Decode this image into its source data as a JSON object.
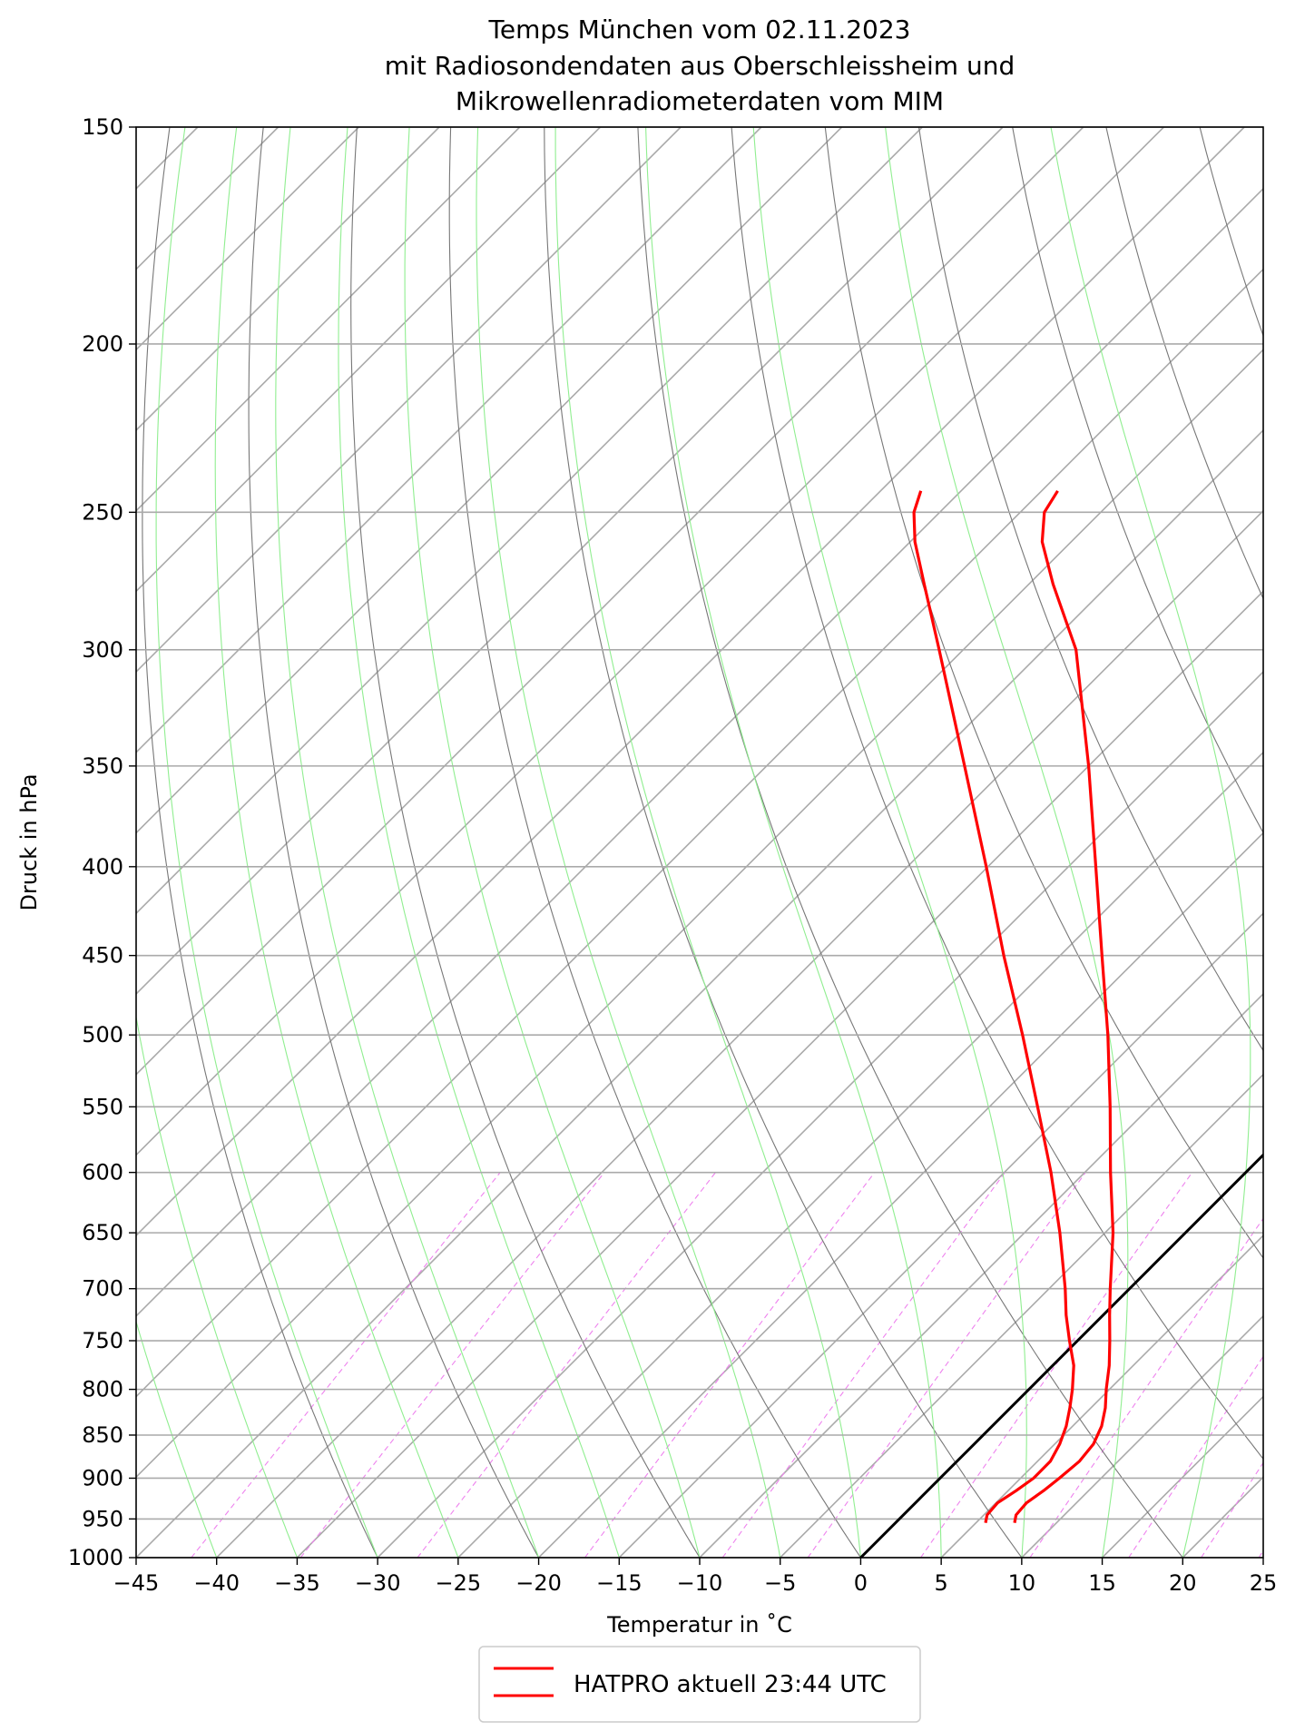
{
  "chart_data": {
    "type": "line",
    "subtype": "skew-T log-p diagram",
    "title_lines": [
      "Temps München vom 02.11.2023",
      "mit Radiosondendaten aus Oberschleissheim und",
      "Mikrowellenradiometerdaten vom MIM"
    ],
    "xlabel": "Temperatur in $^\\circ$C",
    "xlabel_display": "Temperatur in ˚C",
    "ylabel": "Druck in hPa",
    "xlim": [
      -45,
      25
    ],
    "ylim": [
      1000,
      150
    ],
    "y_scale": "log",
    "skew": "isotherms slanted to the right",
    "grid": true,
    "x_ticks": [
      -45,
      -40,
      -35,
      -30,
      -25,
      -20,
      -15,
      -10,
      -5,
      0,
      5,
      10,
      15,
      20,
      25
    ],
    "x_tick_labels": [
      "−45",
      "−40",
      "−35",
      "−30",
      "−25",
      "−20",
      "−15",
      "−10",
      "−5",
      "0",
      "5",
      "10",
      "15",
      "20",
      "25"
    ],
    "y_ticks": [
      1000,
      950,
      900,
      850,
      800,
      750,
      700,
      650,
      600,
      550,
      500,
      450,
      400,
      350,
      300,
      250,
      200,
      150
    ],
    "y_tick_labels": [
      "1000",
      "950",
      "900",
      "850",
      "800",
      "750",
      "700",
      "650",
      "600",
      "550",
      "500",
      "450",
      "400",
      "350",
      "300",
      "250",
      "200",
      "150"
    ],
    "reference_isotherm": {
      "temperature": 0,
      "color": "#000000"
    },
    "isotherm_color": "#aaaaaa",
    "dry_adiabat_color": "#777777",
    "moist_adiabat_color": "#90ee90",
    "mixing_ratio_color": "#ee82ee",
    "series": [
      {
        "name": "HATPRO aktuell 23:44 UTC",
        "color": "#ff0000",
        "points": [
          {
            "p": 955,
            "t": 7.4
          },
          {
            "p": 945,
            "t": 7.0
          },
          {
            "p": 930,
            "t": 6.9
          },
          {
            "p": 915,
            "t": 7.2
          },
          {
            "p": 900,
            "t": 7.4
          },
          {
            "p": 880,
            "t": 7.6
          },
          {
            "p": 860,
            "t": 7.4
          },
          {
            "p": 840,
            "t": 6.8
          },
          {
            "p": 820,
            "t": 5.9
          },
          {
            "p": 800,
            "t": 4.8
          },
          {
            "p": 775,
            "t": 3.5
          },
          {
            "p": 750,
            "t": 2.0
          },
          {
            "p": 725,
            "t": 0.4
          },
          {
            "p": 700,
            "t": -1.2
          },
          {
            "p": 650,
            "t": -4.5
          },
          {
            "p": 600,
            "t": -8.4
          },
          {
            "p": 550,
            "t": -12.5
          },
          {
            "p": 500,
            "t": -17.1
          },
          {
            "p": 450,
            "t": -22.4
          },
          {
            "p": 400,
            "t": -28.3
          },
          {
            "p": 350,
            "t": -35.0
          },
          {
            "p": 300,
            "t": -43.0
          },
          {
            "p": 275,
            "t": -48.5
          },
          {
            "p": 260,
            "t": -51.8
          },
          {
            "p": 250,
            "t": -53.5
          },
          {
            "p": 243,
            "t": -54.0
          }
        ]
      },
      {
        "name": "HATPRO aktuell 23:44 UTC",
        "color": "#ff0000",
        "points": [
          {
            "p": 955,
            "t": 5.6
          },
          {
            "p": 945,
            "t": 5.2
          },
          {
            "p": 930,
            "t": 5.1
          },
          {
            "p": 915,
            "t": 5.5
          },
          {
            "p": 900,
            "t": 5.8
          },
          {
            "p": 880,
            "t": 5.8
          },
          {
            "p": 860,
            "t": 5.3
          },
          {
            "p": 840,
            "t": 4.6
          },
          {
            "p": 820,
            "t": 3.7
          },
          {
            "p": 800,
            "t": 2.7
          },
          {
            "p": 775,
            "t": 1.3
          },
          {
            "p": 750,
            "t": -0.5
          },
          {
            "p": 725,
            "t": -2.3
          },
          {
            "p": 700,
            "t": -4.0
          },
          {
            "p": 650,
            "t": -7.8
          },
          {
            "p": 600,
            "t": -12.1
          },
          {
            "p": 550,
            "t": -17.0
          },
          {
            "p": 500,
            "t": -22.4
          },
          {
            "p": 450,
            "t": -28.5
          },
          {
            "p": 400,
            "t": -35.1
          },
          {
            "p": 350,
            "t": -42.7
          },
          {
            "p": 300,
            "t": -51.5
          },
          {
            "p": 275,
            "t": -56.5
          },
          {
            "p": 260,
            "t": -59.7
          },
          {
            "p": 250,
            "t": -61.6
          },
          {
            "p": 243,
            "t": -62.5
          }
        ]
      }
    ],
    "legend": {
      "placement": "bottom-center, below the plot",
      "entries": [
        "HATPRO aktuell 23:44 UTC",
        "HATPRO aktuell 23:44 UTC"
      ]
    }
  }
}
